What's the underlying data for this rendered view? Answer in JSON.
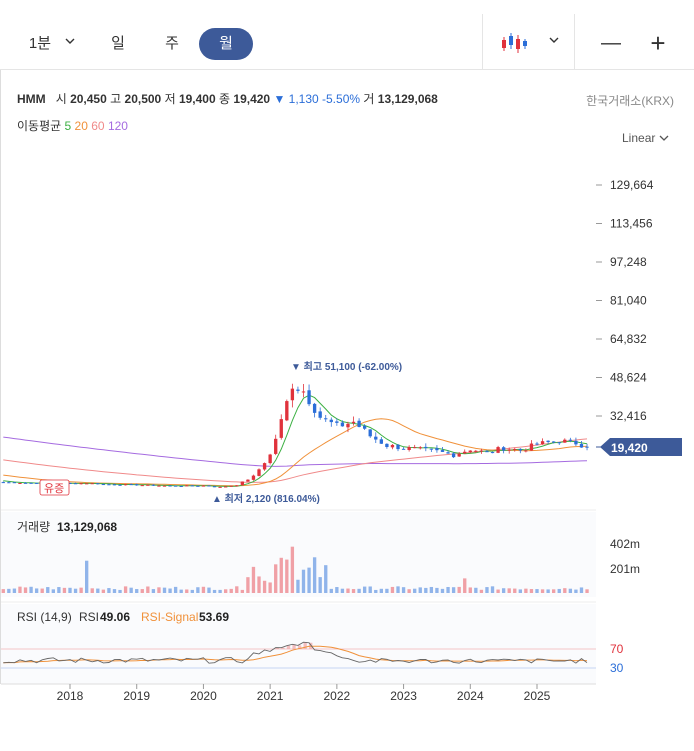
{
  "toolbar": {
    "tabs": [
      "1분",
      "일",
      "주",
      "월"
    ],
    "active_tab": "월",
    "minus_symbol": "—",
    "plus_symbol": "+"
  },
  "info": {
    "ticker": "HMM",
    "open_label": "시",
    "open": "20,450",
    "high_label": "고",
    "high": "20,500",
    "low_label": "저",
    "low": "19,400",
    "close_label": "종",
    "close": "19,420",
    "change": "▼ 1,130 -5.50%",
    "volume_label": "거",
    "volume": "13,129,068",
    "exchange": "한국거래소(KRX)"
  },
  "ma": {
    "label": "이동평균",
    "p5": "5",
    "p20": "20",
    "p60": "60",
    "p120": "120"
  },
  "scale_mode": "Linear",
  "colors": {
    "up": "#e0323c",
    "down": "#2b6ed8",
    "ma5": "#3cb043",
    "ma20": "#f0913a",
    "ma60": "#f08a8a",
    "ma120": "#a56be0",
    "accent": "#3d5a99",
    "rsi": "#555555",
    "rsi_signal": "#f0913a"
  },
  "chart_data": [
    {
      "type": "candlestick",
      "title": "",
      "x_ticks": [
        "2018",
        "2019",
        "2020",
        "2021",
        "2022",
        "2023",
        "2024",
        "2025"
      ],
      "y_ticks": [
        "129,664",
        "113,456",
        "97,248",
        "81,040",
        "64,832",
        "48,624",
        "32,416"
      ],
      "y_tick_values": [
        129664,
        113456,
        97248,
        81040,
        64832,
        48624,
        32416
      ],
      "ylim": [
        14000,
        141000
      ],
      "last_price_label": "19,420",
      "last_price": 19420,
      "peak_annotation": "▼ 최고 51,100 (-62.00%)",
      "peak": {
        "date": "2021.4",
        "value": 51100
      },
      "trough_annotation": "▲ 최저 2,120 (816.04%)",
      "trough": {
        "date": "2020.3",
        "value": 2120
      },
      "event_badge": "유증",
      "close": [
        {
          "x": "2017.0",
          "y": 4500
        },
        {
          "x": "2017.5",
          "y": 4200
        },
        {
          "x": "2018.0",
          "y": 4000
        },
        {
          "x": "2018.25",
          "y": 4200
        },
        {
          "x": "2018.5",
          "y": 3700
        },
        {
          "x": "2019.0",
          "y": 3400
        },
        {
          "x": "2019.5",
          "y": 3000
        },
        {
          "x": "2020.0",
          "y": 3100
        },
        {
          "x": "2020.25",
          "y": 2500
        },
        {
          "x": "2020.5",
          "y": 3400
        },
        {
          "x": "2020.75",
          "y": 7000
        },
        {
          "x": "2021.0",
          "y": 16000
        },
        {
          "x": "2021.2",
          "y": 33000
        },
        {
          "x": "2021.33",
          "y": 46000
        },
        {
          "x": "2021.5",
          "y": 43000
        },
        {
          "x": "2021.75",
          "y": 32000
        },
        {
          "x": "2022.0",
          "y": 28000
        },
        {
          "x": "2022.25",
          "y": 30000
        },
        {
          "x": "2022.5",
          "y": 24000
        },
        {
          "x": "2022.75",
          "y": 20000
        },
        {
          "x": "2023.0",
          "y": 19000
        },
        {
          "x": "2023.5",
          "y": 17500
        },
        {
          "x": "2023.75",
          "y": 16000
        },
        {
          "x": "2024.0",
          "y": 18500
        },
        {
          "x": "2024.25",
          "y": 17000
        },
        {
          "x": "2024.5",
          "y": 19000
        },
        {
          "x": "2024.75",
          "y": 18000
        },
        {
          "x": "2025.0",
          "y": 20500
        },
        {
          "x": "2025.33",
          "y": 22000
        },
        {
          "x": "2025.6",
          "y": 21000
        },
        {
          "x": "2025.75",
          "y": 19420
        }
      ]
    },
    {
      "type": "bar",
      "title": "거래량",
      "current_label": "13,129,068",
      "y_ticks": [
        "402m",
        "201m"
      ],
      "y_tick_values": [
        402,
        201
      ],
      "unit": "m"
    },
    {
      "type": "line",
      "title": "RSI (14,9)",
      "rsi_label": "RSI",
      "rsi_value": "49.06",
      "signal_label": "RSI-Signal",
      "signal_value": "53.69",
      "levels": [
        "70",
        "30"
      ],
      "level_values": [
        70,
        30
      ]
    }
  ]
}
